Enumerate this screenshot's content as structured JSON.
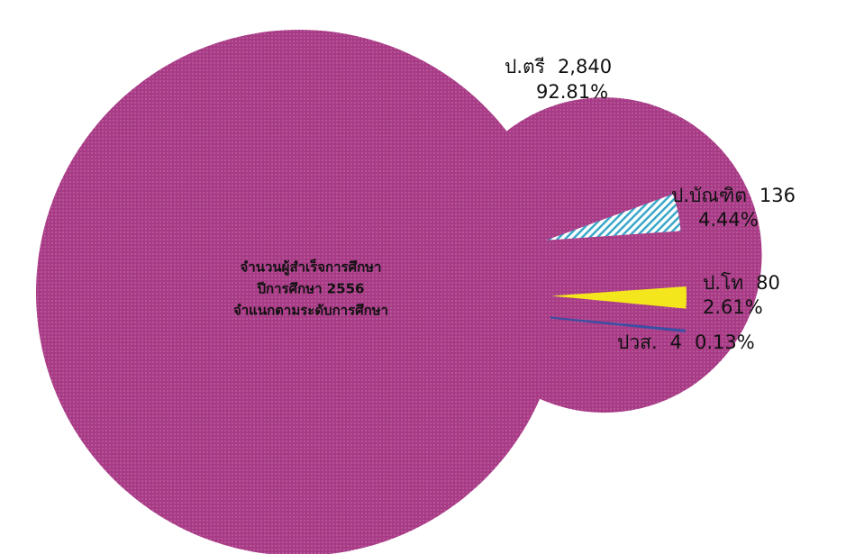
{
  "chart_data": {
    "type": "donut",
    "title": [
      "จำนวนผู้สำเร็จการศึกษา",
      "ปีการศึกษา 2556",
      "จำแนกตามระดับการศึกษา"
    ],
    "categories": [
      "ป.ตรี",
      "ป.บัณฑิต",
      "ป.โท",
      "ปวส."
    ],
    "values": [
      2840,
      136,
      80,
      4
    ],
    "value_labels": [
      "2,840",
      "136",
      "80",
      "4"
    ],
    "percent_labels": [
      "92.81%",
      "4.44%",
      "2.61%",
      "0.13%"
    ],
    "colors": [
      "#a83a86",
      "#3ba7c9",
      "#f4e61c",
      "#3b4fa3"
    ]
  }
}
